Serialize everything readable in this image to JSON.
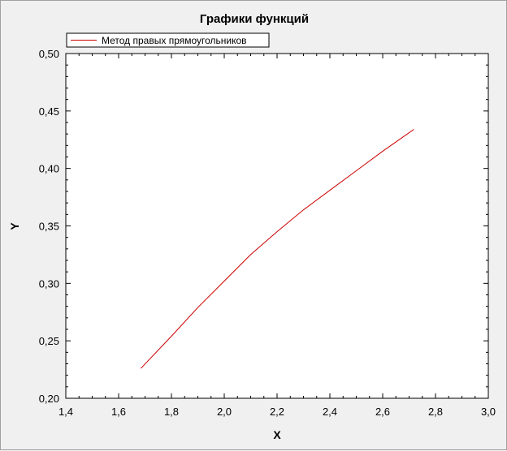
{
  "chart_data": {
    "type": "line",
    "title": "Графики функций",
    "xlabel": "X",
    "ylabel": "Y",
    "xlim": [
      1.4,
      3.0
    ],
    "ylim": [
      0.2,
      0.5
    ],
    "grid": false,
    "legend_position": "top-left",
    "x_ticks": [
      "1,4",
      "1,6",
      "1,8",
      "2,0",
      "2,2",
      "2,4",
      "2,6",
      "2,8",
      "3,0"
    ],
    "y_ticks": [
      "0,20",
      "0,25",
      "0,30",
      "0,35",
      "0,40",
      "0,45",
      "0,50"
    ],
    "series": [
      {
        "name": "Метод правых прямоугольников",
        "color": "#cc0000",
        "x": [
          1.684,
          1.8,
          1.9,
          2.0,
          2.1,
          2.2,
          2.3,
          2.4,
          2.5,
          2.6,
          2.718
        ],
        "y": [
          0.226,
          0.254,
          0.279,
          0.302,
          0.325,
          0.345,
          0.364,
          0.381,
          0.398,
          0.415,
          0.434
        ]
      }
    ]
  }
}
